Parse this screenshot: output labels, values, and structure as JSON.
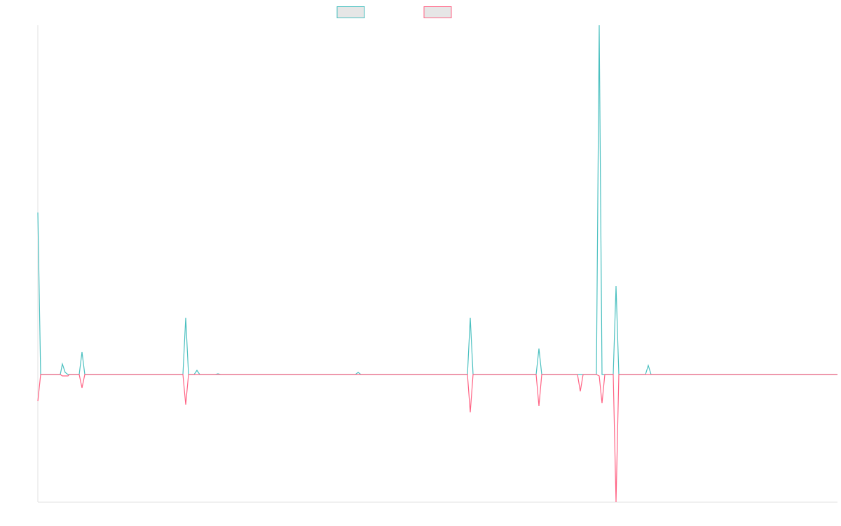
{
  "chart_data": {
    "type": "line",
    "xlim": [
      0,
      1141
    ],
    "ylim": [
      -182,
      498
    ],
    "series": [
      {
        "color": "#4bc0c0",
        "x": [
          0,
          4,
          32,
          35,
          39,
          43,
          59,
          63,
          67,
          207,
          211,
          215,
          223,
          227,
          231,
          253,
          257,
          261,
          453,
          457,
          461,
          613,
          617,
          621,
          711,
          715,
          719,
          797,
          801,
          805,
          821,
          825,
          829,
          867,
          871,
          875,
          1141
        ],
        "values": [
          231,
          0,
          0,
          15,
          3,
          0,
          0,
          32,
          0,
          0,
          81,
          0,
          0,
          6,
          0,
          0,
          1,
          0,
          0,
          3,
          0,
          0,
          81,
          0,
          0,
          37,
          0,
          0,
          498,
          0,
          0,
          126,
          0,
          0,
          13,
          0,
          0
        ]
      },
      {
        "color": "#ff6384",
        "x": [
          0,
          4,
          32,
          35,
          43,
          45,
          59,
          63,
          67,
          207,
          211,
          215,
          613,
          617,
          621,
          711,
          715,
          719,
          770,
          774,
          778,
          797,
          801,
          805,
          809,
          821,
          825,
          829,
          1141
        ],
        "values": [
          -38,
          0,
          0,
          -2,
          -2,
          0,
          0,
          -19,
          0,
          0,
          -43,
          0,
          0,
          -54,
          0,
          0,
          -45,
          0,
          0,
          -24,
          0,
          0,
          -2,
          -41,
          0,
          0,
          -182,
          0,
          0
        ]
      }
    ]
  }
}
